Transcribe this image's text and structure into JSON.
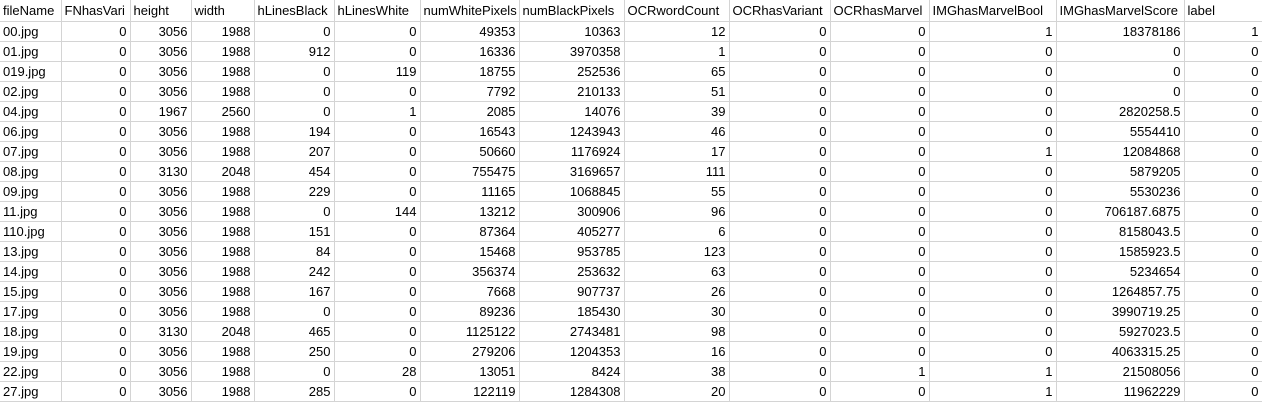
{
  "sheet": {
    "headers": [
      "fileName",
      "FNhasVari",
      "height",
      "width",
      "hLinesBlack",
      "hLinesWhite",
      "numWhitePixels",
      "numBlackPixels",
      "OCRwordCount",
      "OCRhasVariant",
      "OCRhasMarvel",
      "IMGhasMarvelBool",
      "IMGhasMarvelScore",
      "label"
    ],
    "rows": [
      [
        "00.jpg",
        "0",
        "3056",
        "1988",
        "0",
        "0",
        "49353",
        "10363",
        "12",
        "0",
        "0",
        "1",
        "18378186",
        "1"
      ],
      [
        "01.jpg",
        "0",
        "3056",
        "1988",
        "912",
        "0",
        "16336",
        "3970358",
        "1",
        "0",
        "0",
        "0",
        "0",
        "0"
      ],
      [
        "019.jpg",
        "0",
        "3056",
        "1988",
        "0",
        "119",
        "18755",
        "252536",
        "65",
        "0",
        "0",
        "0",
        "0",
        "0"
      ],
      [
        "02.jpg",
        "0",
        "3056",
        "1988",
        "0",
        "0",
        "7792",
        "210133",
        "51",
        "0",
        "0",
        "0",
        "0",
        "0"
      ],
      [
        "04.jpg",
        "0",
        "1967",
        "2560",
        "0",
        "1",
        "2085",
        "14076",
        "39",
        "0",
        "0",
        "0",
        "2820258.5",
        "0"
      ],
      [
        "06.jpg",
        "0",
        "3056",
        "1988",
        "194",
        "0",
        "16543",
        "1243943",
        "46",
        "0",
        "0",
        "0",
        "5554410",
        "0"
      ],
      [
        "07.jpg",
        "0",
        "3056",
        "1988",
        "207",
        "0",
        "50660",
        "1176924",
        "17",
        "0",
        "0",
        "1",
        "12084868",
        "0"
      ],
      [
        "08.jpg",
        "0",
        "3130",
        "2048",
        "454",
        "0",
        "755475",
        "3169657",
        "111",
        "0",
        "0",
        "0",
        "5879205",
        "0"
      ],
      [
        "09.jpg",
        "0",
        "3056",
        "1988",
        "229",
        "0",
        "11165",
        "1068845",
        "55",
        "0",
        "0",
        "0",
        "5530236",
        "0"
      ],
      [
        "11.jpg",
        "0",
        "3056",
        "1988",
        "0",
        "144",
        "13212",
        "300906",
        "96",
        "0",
        "0",
        "0",
        "706187.6875",
        "0"
      ],
      [
        "110.jpg",
        "0",
        "3056",
        "1988",
        "151",
        "0",
        "87364",
        "405277",
        "6",
        "0",
        "0",
        "0",
        "8158043.5",
        "0"
      ],
      [
        "13.jpg",
        "0",
        "3056",
        "1988",
        "84",
        "0",
        "15468",
        "953785",
        "123",
        "0",
        "0",
        "0",
        "1585923.5",
        "0"
      ],
      [
        "14.jpg",
        "0",
        "3056",
        "1988",
        "242",
        "0",
        "356374",
        "253632",
        "63",
        "0",
        "0",
        "0",
        "5234654",
        "0"
      ],
      [
        "15.jpg",
        "0",
        "3056",
        "1988",
        "167",
        "0",
        "7668",
        "907737",
        "26",
        "0",
        "0",
        "0",
        "1264857.75",
        "0"
      ],
      [
        "17.jpg",
        "0",
        "3056",
        "1988",
        "0",
        "0",
        "89236",
        "185430",
        "30",
        "0",
        "0",
        "0",
        "3990719.25",
        "0"
      ],
      [
        "18.jpg",
        "0",
        "3130",
        "2048",
        "465",
        "0",
        "1125122",
        "2743481",
        "98",
        "0",
        "0",
        "0",
        "5927023.5",
        "0"
      ],
      [
        "19.jpg",
        "0",
        "3056",
        "1988",
        "250",
        "0",
        "279206",
        "1204353",
        "16",
        "0",
        "0",
        "0",
        "4063315.25",
        "0"
      ],
      [
        "22.jpg",
        "0",
        "3056",
        "1988",
        "0",
        "28",
        "13051",
        "8424",
        "38",
        "0",
        "1",
        "1",
        "21508056",
        "0"
      ],
      [
        "27.jpg",
        "0",
        "3056",
        "1988",
        "285",
        "0",
        "122119",
        "1284308",
        "20",
        "0",
        "0",
        "1",
        "11962229",
        "0"
      ]
    ]
  }
}
